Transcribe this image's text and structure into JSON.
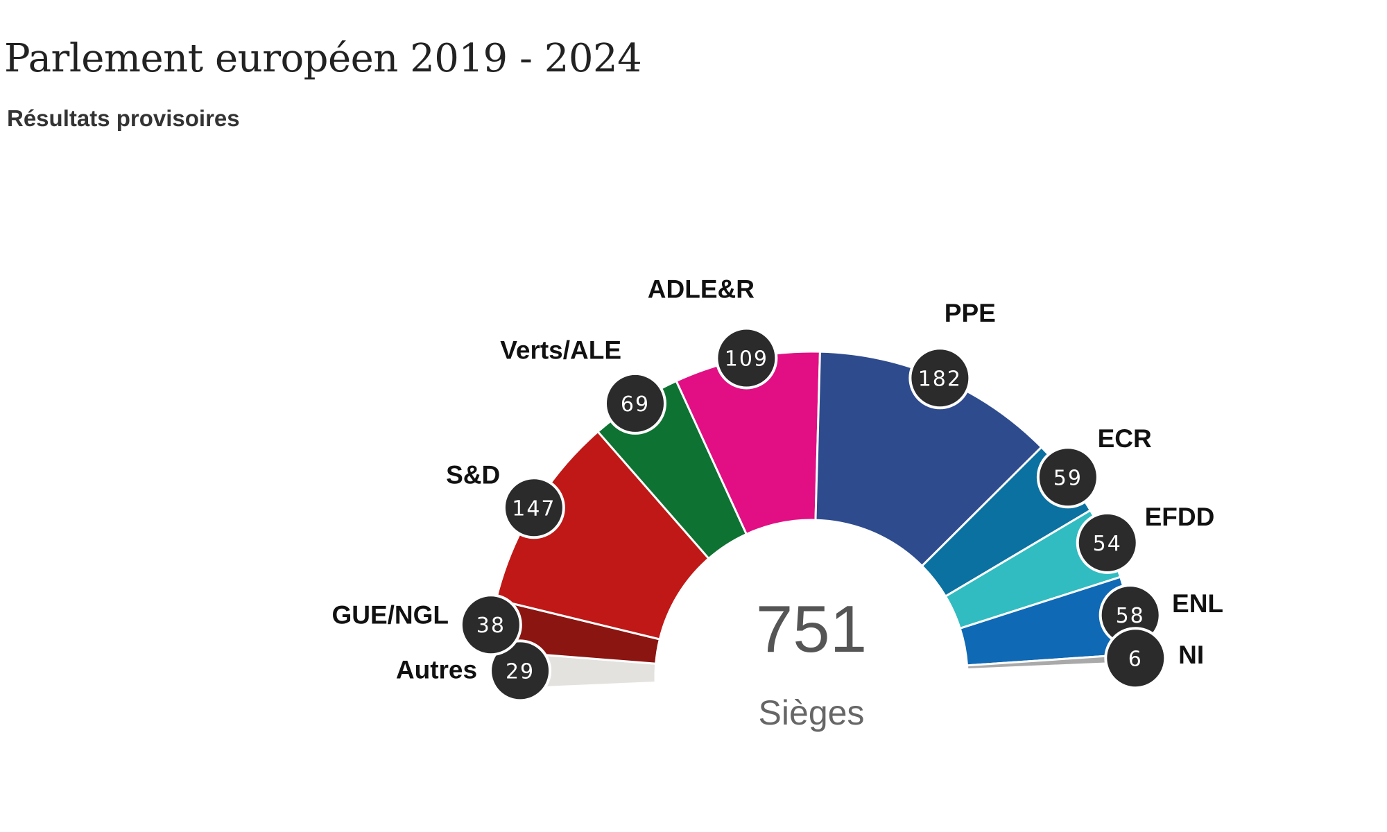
{
  "title": "Parlement européen 2019 - 2024",
  "subtitle": "Résultats provisoires",
  "center": {
    "total": "751",
    "label": "Sièges"
  },
  "chart_data": {
    "type": "pie",
    "subtype": "semicircle-parliament",
    "title": "Parlement européen 2019 - 2024",
    "subtitle": "Résultats provisoires",
    "total": 751,
    "total_label": "Sièges",
    "legend": "none",
    "series": [
      {
        "name": "Autres",
        "value": 29,
        "color": "#e4e2df"
      },
      {
        "name": "GUE/NGL",
        "value": 38,
        "color": "#8b1511"
      },
      {
        "name": "S&D",
        "value": 147,
        "color": "#c01816"
      },
      {
        "name": "Verts/ALE",
        "value": 69,
        "color": "#0e7232"
      },
      {
        "name": "ADLE&R",
        "value": 109,
        "color": "#e20e84"
      },
      {
        "name": "PPE",
        "value": 182,
        "color": "#2e4b8e"
      },
      {
        "name": "ECR",
        "value": 59,
        "color": "#0a71a0"
      },
      {
        "name": "EFDD",
        "value": 54,
        "color": "#30bcc1"
      },
      {
        "name": "ENL",
        "value": 58,
        "color": "#0f69b4"
      },
      {
        "name": "NI",
        "value": 6,
        "color": "#a9a9a9"
      }
    ]
  }
}
